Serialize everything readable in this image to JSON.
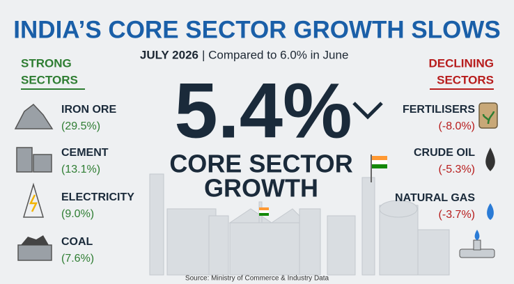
{
  "header": {
    "title": "INDIA’S CORE SECTOR GROWTH SLOWS",
    "period": "JULY 2026",
    "comparison": "| Compared to 6.0% in June"
  },
  "headline": {
    "value": "5.4%",
    "caption": [
      "CORE SECTOR",
      "GROWTH"
    ]
  },
  "strong": {
    "heading": [
      "STRONG",
      "SECTORS"
    ],
    "items": [
      {
        "label": "IRON ORE",
        "change": "(29.5%)"
      },
      {
        "label": "CEMENT",
        "change": "(13.1%)"
      },
      {
        "label": "ELECTRICITY",
        "change": "(9.0%)"
      },
      {
        "label": "COAL",
        "change": "(7.6%)"
      }
    ]
  },
  "declining": {
    "heading": [
      "DECLINING",
      "SECTORS"
    ],
    "items": [
      {
        "label": "FERTILISERS",
        "change": "(-8.0%)"
      },
      {
        "label": "CRUDE OIL",
        "change": "(-5.3%)"
      },
      {
        "label": "NATURAL GAS",
        "change": "(-3.7%)"
      }
    ]
  },
  "footer": {
    "source": "Source: Ministry of Commerce & Industry Data"
  }
}
